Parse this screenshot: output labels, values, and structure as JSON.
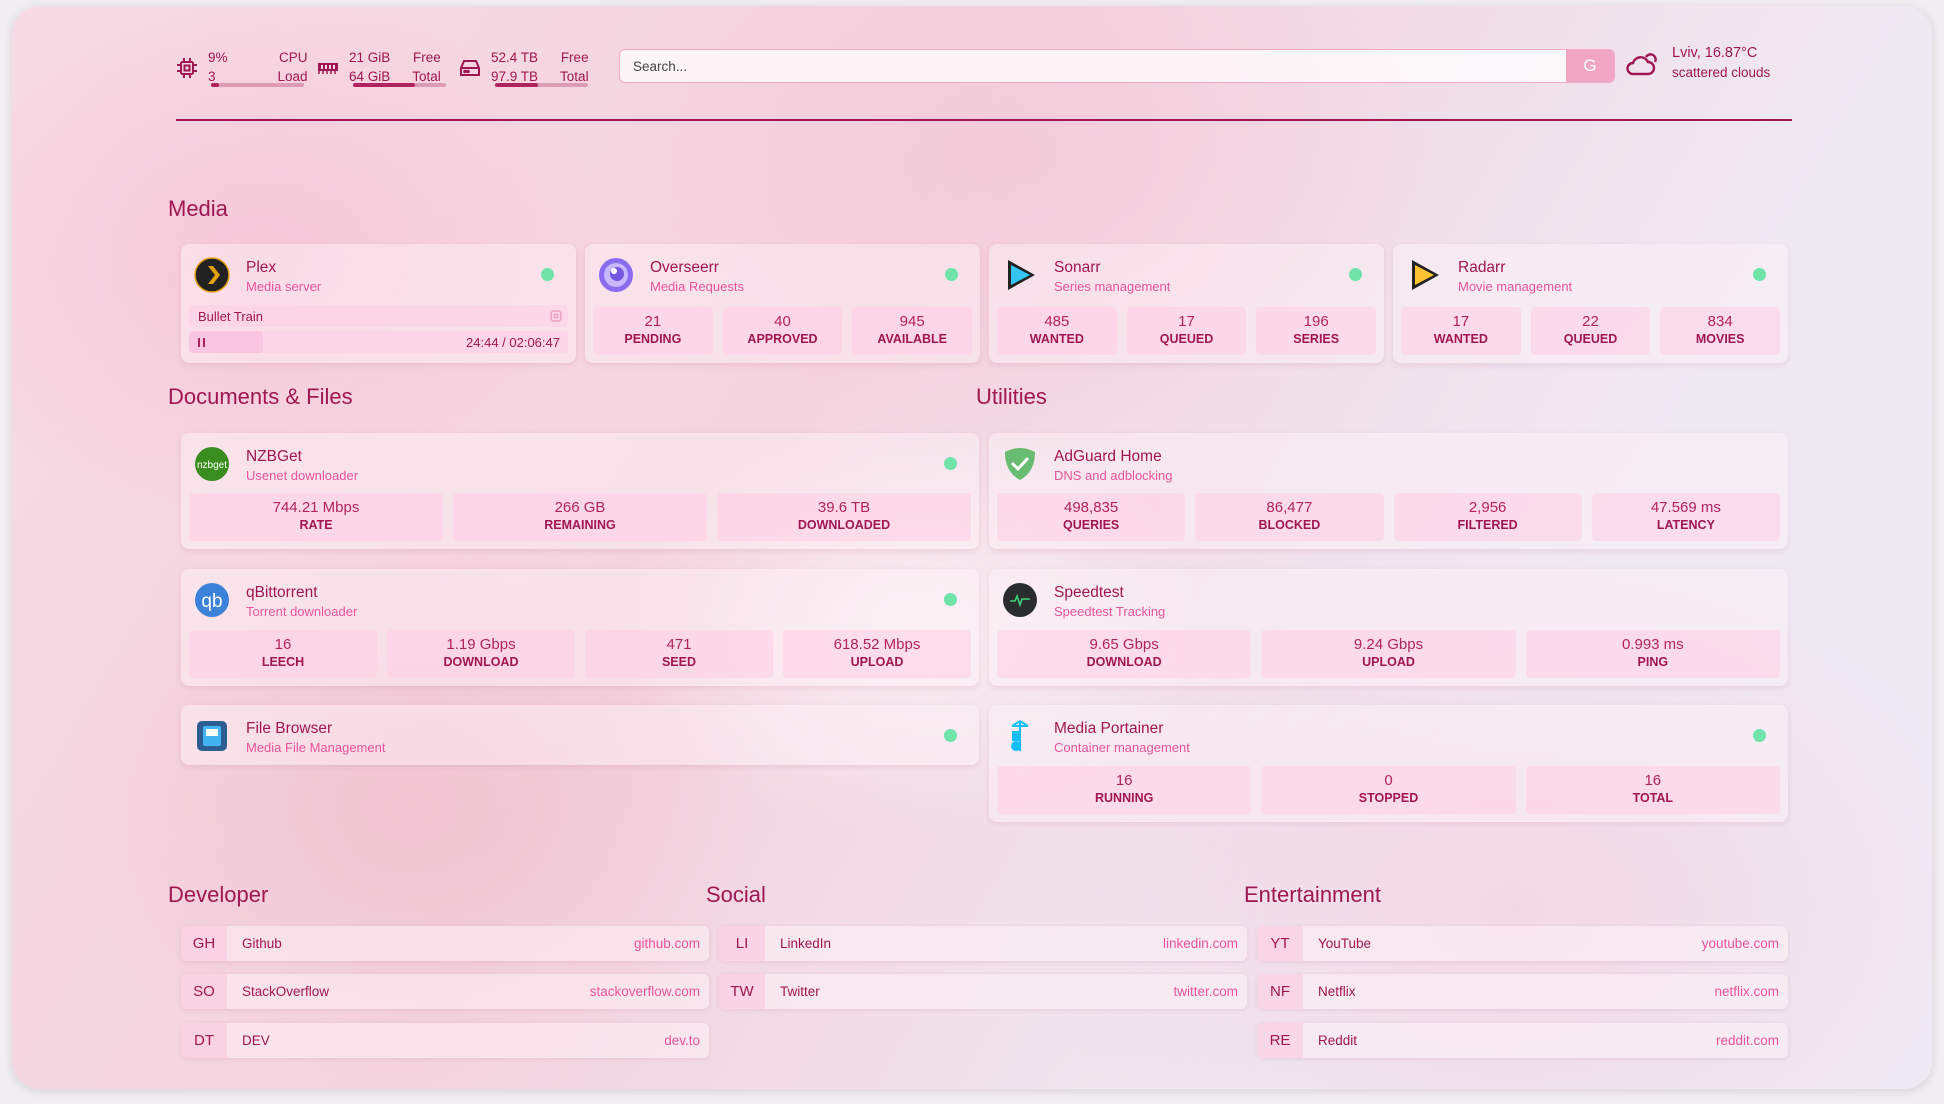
{
  "header": {
    "cpu": {
      "value": "9%",
      "value2": "3",
      "label": "CPU",
      "label2": "Load",
      "percent": 9
    },
    "memory": {
      "value": "21 GiB",
      "value2": "64 GiB",
      "label": "Free",
      "label2": "Total",
      "percent": 67
    },
    "disk": {
      "value": "52.4 TB",
      "value2": "97.9 TB",
      "label": "Free",
      "label2": "Total",
      "percent": 46
    },
    "search": {
      "placeholder": "Search...",
      "provider_label": "G"
    },
    "weather": {
      "location_temp": "Lviv, 16.87°C",
      "condition": "scattered clouds",
      "icon": "cloud-sun-icon"
    }
  },
  "colors": {
    "accent": "#9e1750",
    "subtitle": "#e6559b",
    "status_online": "#6fe3a9"
  },
  "sections": {
    "media": {
      "title": "Media",
      "services": [
        {
          "name": "Plex",
          "desc": "Media server",
          "icon": "plex-icon",
          "status": "online",
          "now_playing": {
            "title": "Bullet Train",
            "time": "24:44 / 02:06:47",
            "state": "playing",
            "progress_percent": 19.5
          }
        },
        {
          "name": "Overseerr",
          "desc": "Media Requests",
          "icon": "overseerr-icon",
          "status": "online",
          "stats": [
            {
              "v": "21",
              "l": "PENDING"
            },
            {
              "v": "40",
              "l": "APPROVED"
            },
            {
              "v": "945",
              "l": "AVAILABLE"
            }
          ]
        },
        {
          "name": "Sonarr",
          "desc": "Series management",
          "icon": "sonarr-icon",
          "status": "online",
          "stats": [
            {
              "v": "485",
              "l": "WANTED"
            },
            {
              "v": "17",
              "l": "QUEUED"
            },
            {
              "v": "196",
              "l": "SERIES"
            }
          ]
        },
        {
          "name": "Radarr",
          "desc": "Movie management",
          "icon": "radarr-icon",
          "status": "online",
          "stats": [
            {
              "v": "17",
              "l": "WANTED"
            },
            {
              "v": "22",
              "l": "QUEUED"
            },
            {
              "v": "834",
              "l": "MOVIES"
            }
          ]
        }
      ]
    },
    "documents": {
      "title": "Documents & Files",
      "services": [
        {
          "name": "NZBGet",
          "desc": "Usenet downloader",
          "icon": "nzbget-icon",
          "status": "online",
          "stats": [
            {
              "v": "744.21 Mbps",
              "l": "RATE"
            },
            {
              "v": "266 GB",
              "l": "REMAINING"
            },
            {
              "v": "39.6 TB",
              "l": "DOWNLOADED"
            }
          ]
        },
        {
          "name": "qBittorrent",
          "desc": "Torrent downloader",
          "icon": "qbittorrent-icon",
          "status": "online",
          "stats": [
            {
              "v": "16",
              "l": "LEECH"
            },
            {
              "v": "1.19 Gbps",
              "l": "DOWNLOAD"
            },
            {
              "v": "471",
              "l": "SEED"
            },
            {
              "v": "618.52 Mbps",
              "l": "UPLOAD"
            }
          ]
        },
        {
          "name": "File Browser",
          "desc": "Media File Management",
          "icon": "filebrowser-icon",
          "status": "online"
        }
      ]
    },
    "utilities": {
      "title": "Utilities",
      "services": [
        {
          "name": "AdGuard Home",
          "desc": "DNS and adblocking",
          "icon": "adguard-icon",
          "stats": [
            {
              "v": "498,835",
              "l": "QUERIES"
            },
            {
              "v": "86,477",
              "l": "BLOCKED"
            },
            {
              "v": "2,956",
              "l": "FILTERED"
            },
            {
              "v": "47.569 ms",
              "l": "LATENCY"
            }
          ]
        },
        {
          "name": "Speedtest",
          "desc": "Speedtest Tracking",
          "icon": "speedtest-icon",
          "stats": [
            {
              "v": "9.65 Gbps",
              "l": "DOWNLOAD"
            },
            {
              "v": "9.24 Gbps",
              "l": "UPLOAD"
            },
            {
              "v": "0.993 ms",
              "l": "PING"
            }
          ]
        },
        {
          "name": "Media Portainer",
          "desc": "Container management",
          "icon": "portainer-icon",
          "status": "online",
          "stats": [
            {
              "v": "16",
              "l": "RUNNING"
            },
            {
              "v": "0",
              "l": "STOPPED"
            },
            {
              "v": "16",
              "l": "TOTAL"
            }
          ]
        }
      ]
    }
  },
  "bookmarks": [
    {
      "title": "Developer",
      "items": [
        {
          "abbr": "GH",
          "name": "Github",
          "url": "github.com"
        },
        {
          "abbr": "SO",
          "name": "StackOverflow",
          "url": "stackoverflow.com"
        },
        {
          "abbr": "DT",
          "name": "DEV",
          "url": "dev.to"
        }
      ]
    },
    {
      "title": "Social",
      "items": [
        {
          "abbr": "LI",
          "name": "LinkedIn",
          "url": "linkedin.com"
        },
        {
          "abbr": "TW",
          "name": "Twitter",
          "url": "twitter.com"
        }
      ]
    },
    {
      "title": "Entertainment",
      "items": [
        {
          "abbr": "YT",
          "name": "YouTube",
          "url": "youtube.com"
        },
        {
          "abbr": "NF",
          "name": "Netflix",
          "url": "netflix.com"
        },
        {
          "abbr": "RE",
          "name": "Reddit",
          "url": "reddit.com"
        }
      ]
    }
  ]
}
